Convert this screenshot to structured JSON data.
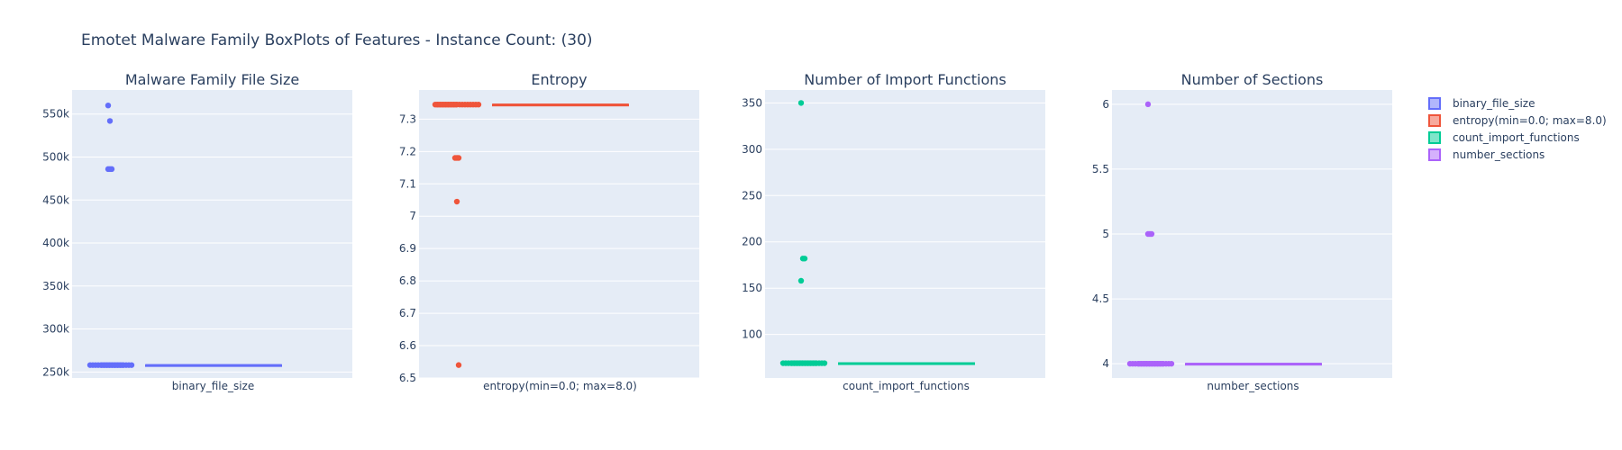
{
  "title": "Emotet Malware Family BoxPlots of Features - Instance Count: (30)",
  "colors": {
    "plot_bg": "#E5ECF6",
    "grid": "#ffffff",
    "text": "#2a3f5f"
  },
  "legend": {
    "placement": "right",
    "items": [
      {
        "label": "binary_file_size",
        "color": "#636EFA"
      },
      {
        "label": "entropy(min=0.0; max=8.0)",
        "color": "#EF553B"
      },
      {
        "label": "count_import_functions",
        "color": "#00CC96"
      },
      {
        "label": "number_sections",
        "color": "#AB63FA"
      }
    ]
  },
  "chart_data": [
    {
      "type": "box",
      "title": "Malware Family File Size",
      "category": "binary_file_size",
      "color": "#636EFA",
      "ylim": [
        243000,
        578000
      ],
      "yticks": [
        250000,
        300000,
        350000,
        400000,
        450000,
        500000,
        550000
      ],
      "ytick_labels": [
        "250k",
        "300k",
        "350k",
        "400k",
        "450k",
        "500k",
        "550k"
      ],
      "box": {
        "min": 258000,
        "q1": 258000,
        "median": 258000,
        "q3": 258000,
        "max": 258000
      },
      "outliers": [
        560000,
        542000,
        486000,
        486000
      ],
      "points": [
        560000,
        542000,
        486000,
        486000,
        486000,
        258000,
        258000,
        258000,
        258000,
        258000,
        258000,
        258000,
        258000,
        258000,
        258000,
        258000,
        258000,
        258000,
        258000,
        258000,
        258000,
        258000,
        258000,
        258000,
        258000,
        258000,
        258000,
        258000,
        258000,
        258000
      ]
    },
    {
      "type": "box",
      "title": "Entropy",
      "category": "entropy(min=0.0; max=8.0)",
      "color": "#EF553B",
      "ylim": [
        6.5,
        7.39
      ],
      "yticks": [
        6.5,
        6.6,
        6.7,
        6.8,
        6.9,
        7,
        7.1,
        7.2,
        7.3
      ],
      "ytick_labels": [
        "6.5",
        "6.6",
        "6.7",
        "6.8",
        "6.9",
        "7",
        "7.1",
        "7.2",
        "7.3"
      ],
      "box": {
        "min": 7.345,
        "q1": 7.345,
        "median": 7.345,
        "q3": 7.345,
        "max": 7.345
      },
      "outliers": [
        7.18,
        7.18,
        7.045,
        6.54
      ],
      "points": [
        7.345,
        7.345,
        7.345,
        7.345,
        7.345,
        7.345,
        7.345,
        7.345,
        7.345,
        7.345,
        7.345,
        7.345,
        7.345,
        7.345,
        7.345,
        7.345,
        7.345,
        7.345,
        7.345,
        7.345,
        7.345,
        7.345,
        7.345,
        7.345,
        7.345,
        7.18,
        7.18,
        7.18,
        7.045,
        6.54
      ]
    },
    {
      "type": "box",
      "title": "Number of Import Functions",
      "category": "count_import_functions",
      "color": "#00CC96",
      "ylim": [
        53,
        364
      ],
      "yticks": [
        100,
        150,
        200,
        250,
        300,
        350
      ],
      "ytick_labels": [
        "100",
        "150",
        "200",
        "250",
        "300",
        "350"
      ],
      "box": {
        "min": 69,
        "q1": 69,
        "median": 69,
        "q3": 69,
        "max": 69
      },
      "outliers": [
        350,
        182,
        182,
        158
      ],
      "points": [
        350,
        182,
        182,
        158,
        69,
        69,
        69,
        69,
        69,
        69,
        69,
        69,
        69,
        69,
        69,
        69,
        69,
        69,
        69,
        69,
        69,
        69,
        69,
        69,
        69,
        69,
        69,
        69,
        69,
        69
      ]
    },
    {
      "type": "box",
      "title": "Number of Sections",
      "category": "number_sections",
      "color": "#AB63FA",
      "ylim": [
        3.89,
        6.11
      ],
      "yticks": [
        4,
        4.5,
        5,
        5.5,
        6
      ],
      "ytick_labels": [
        "4",
        "4.5",
        "5",
        "5.5",
        "6"
      ],
      "box": {
        "min": 4,
        "q1": 4,
        "median": 4,
        "q3": 4,
        "max": 4
      },
      "outliers": [
        6,
        5,
        5
      ],
      "points": [
        6,
        5,
        5,
        5,
        4,
        4,
        4,
        4,
        4,
        4,
        4,
        4,
        4,
        4,
        4,
        4,
        4,
        4,
        4,
        4,
        4,
        4,
        4,
        4,
        4,
        4,
        4,
        4,
        4,
        4
      ]
    }
  ]
}
